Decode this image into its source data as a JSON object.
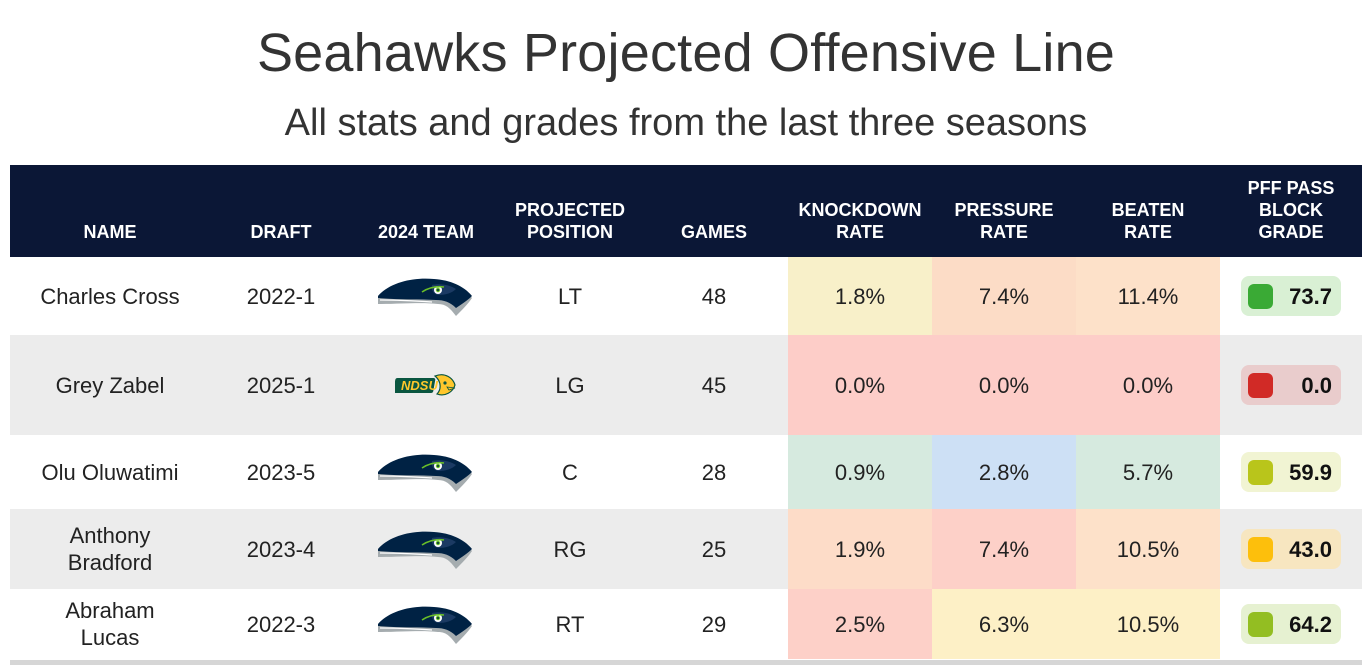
{
  "title": "Seahawks Projected Offensive Line",
  "subtitle": "All stats and grades from the last three seasons",
  "colors": {
    "header_bg": "#0b1736",
    "alt_row_bg": "#ececec"
  },
  "chart_data": {
    "type": "table",
    "columns": [
      {
        "key": "name",
        "label": "NAME"
      },
      {
        "key": "draft",
        "label": "DRAFT"
      },
      {
        "key": "team",
        "label": "2024 TEAM"
      },
      {
        "key": "position",
        "label": "PROJECTED POSITION"
      },
      {
        "key": "games",
        "label": "GAMES"
      },
      {
        "key": "knockdown_rate",
        "label": "KNOCKDOWN RATE"
      },
      {
        "key": "pressure_rate",
        "label": "PRESSURE RATE"
      },
      {
        "key": "beaten_rate",
        "label": "BEATEN RATE"
      },
      {
        "key": "pass_block_grade",
        "label": "PFF PASS BLOCK GRADE"
      }
    ],
    "rows": [
      {
        "name": "Charles Cross",
        "draft": "2022-1",
        "team_icon": "seahawks-logo-icon",
        "position": "LT",
        "games": "48",
        "knockdown_rate": "1.8%",
        "pressure_rate": "7.4%",
        "beaten_rate": "11.4%",
        "pass_block_grade": "73.7",
        "colors": {
          "knockdown": "#f8f0c9",
          "pressure": "#fcdcc6",
          "beaten": "#fde1c9",
          "grade_bg": "#d9f0d4",
          "grade_dot": "#3aaa35"
        }
      },
      {
        "name": "Grey Zabel",
        "draft": "2025-1",
        "team_icon": "ndsu-logo-icon",
        "position": "LG",
        "games": "45",
        "knockdown_rate": "0.0%",
        "pressure_rate": "0.0%",
        "beaten_rate": "0.0%",
        "pass_block_grade": "0.0",
        "colors": {
          "knockdown": "#fdcdc8",
          "pressure": "#fdcdc8",
          "beaten": "#fdcdc8",
          "grade_bg": "#e9cccc",
          "grade_dot": "#d12a26"
        }
      },
      {
        "name": "Olu Oluwatimi",
        "draft": "2023-5",
        "team_icon": "seahawks-logo-icon",
        "position": "C",
        "games": "28",
        "knockdown_rate": "0.9%",
        "pressure_rate": "2.8%",
        "beaten_rate": "5.7%",
        "pass_block_grade": "59.9",
        "colors": {
          "knockdown": "#d6eadf",
          "pressure": "#cde0f5",
          "beaten": "#d6eadf",
          "grade_bg": "#f1f4d3",
          "grade_dot": "#b9c51b"
        }
      },
      {
        "name": "Anthony Bradford",
        "draft": "2023-4",
        "team_icon": "seahawks-logo-icon",
        "position": "RG",
        "games": "25",
        "knockdown_rate": "1.9%",
        "pressure_rate": "7.4%",
        "beaten_rate": "10.5%",
        "pass_block_grade": "43.0",
        "colors": {
          "knockdown": "#fddcc8",
          "pressure": "#fdd0c8",
          "beaten": "#fde1c9",
          "grade_bg": "#f7e6c0",
          "grade_dot": "#fdbf0c"
        }
      },
      {
        "name": "Abraham Lucas",
        "draft": "2022-3",
        "team_icon": "seahawks-logo-icon",
        "position": "RT",
        "games": "29",
        "knockdown_rate": "2.5%",
        "pressure_rate": "6.3%",
        "beaten_rate": "10.5%",
        "pass_block_grade": "64.2",
        "colors": {
          "knockdown": "#fdd0c8",
          "pressure": "#fdf0c6",
          "beaten": "#fdf0c6",
          "grade_bg": "#e6f1d1",
          "grade_dot": "#93be22"
        }
      }
    ]
  }
}
